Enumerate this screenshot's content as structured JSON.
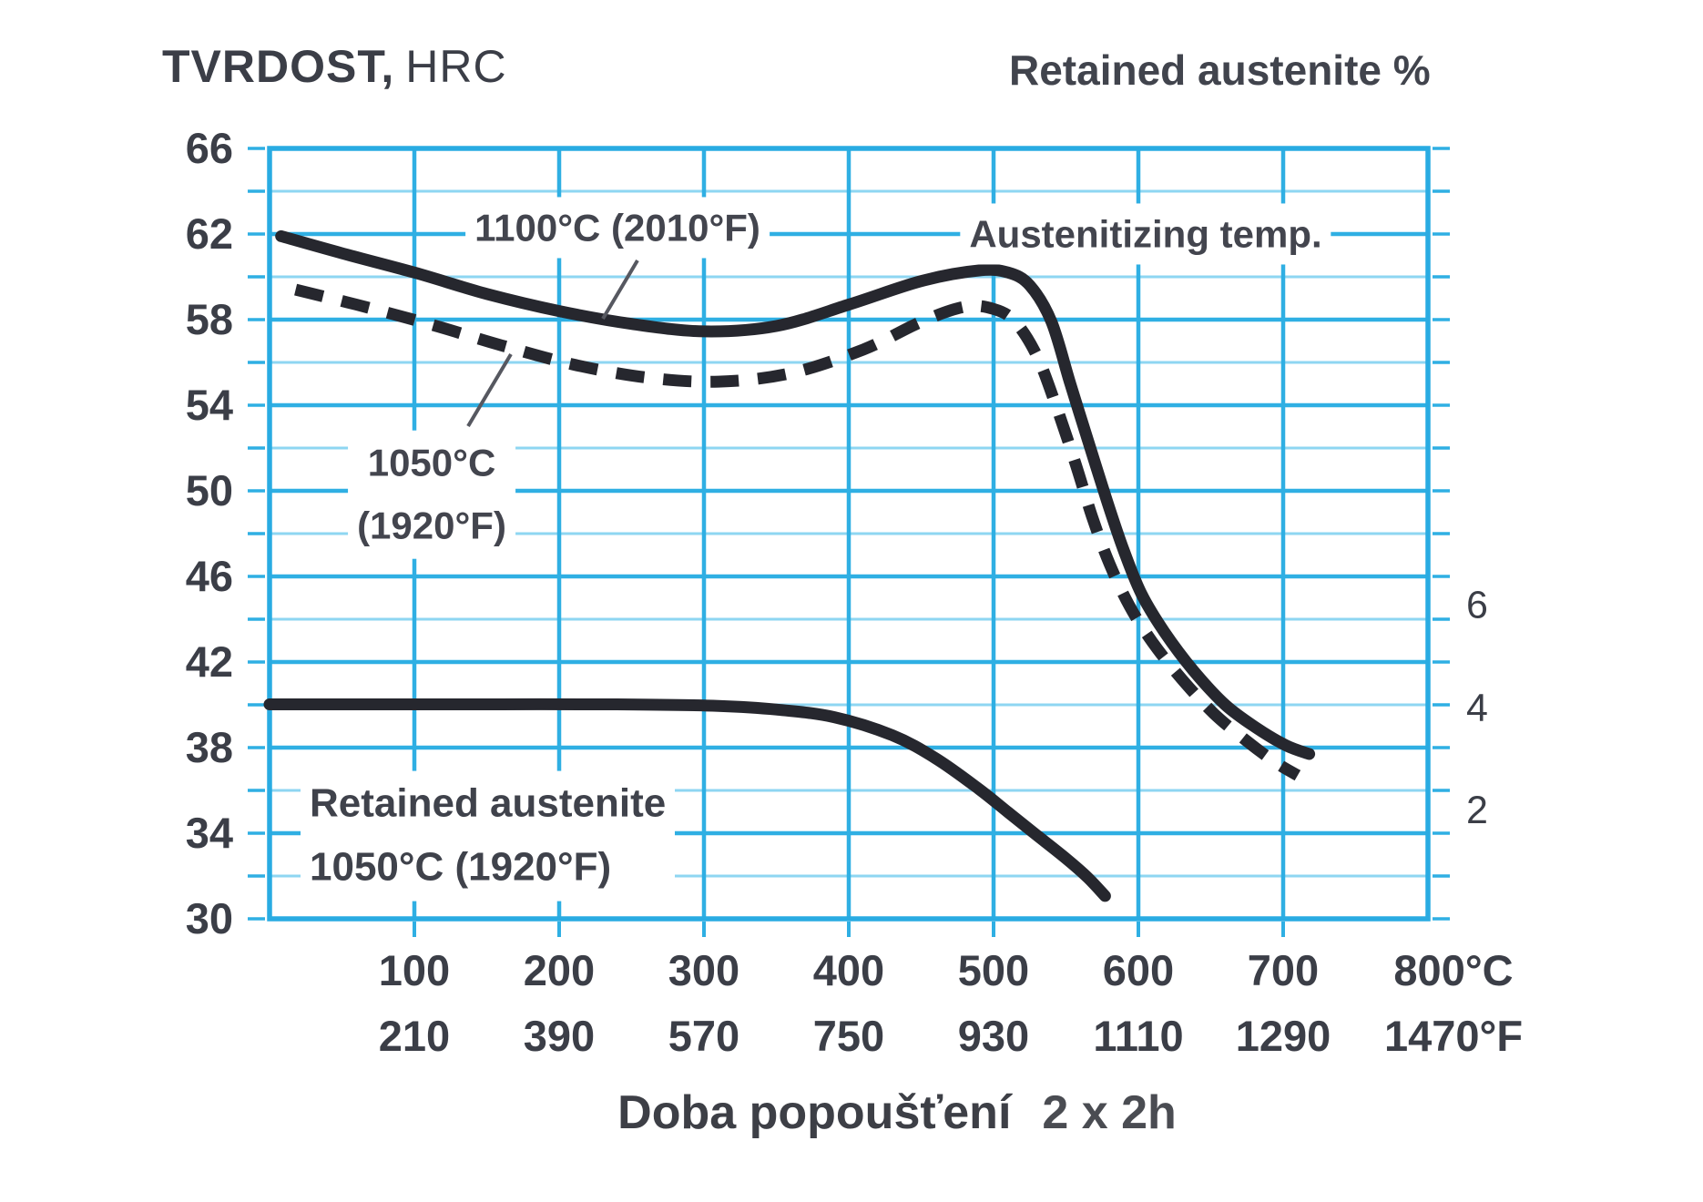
{
  "header": {
    "y_axis_title_bold": "TVRDOST,",
    "y_axis_title_unit": "HRC",
    "right_axis_title": "Retained austenite %"
  },
  "footer": {
    "x_axis_title": "Doba popoušťení",
    "x_axis_title_note": "2 x 2h"
  },
  "colors": {
    "grid_major": "#2FAFE3",
    "grid_minor": "#8ED6F2",
    "plot_border": "#29ABE2",
    "curve": "#26272E",
    "leader": "#565860",
    "text": "#3B3E47"
  },
  "chart_data": {
    "type": "line",
    "x_axis": {
      "unit_c": "°C",
      "unit_f": "°F",
      "range_c": [
        0,
        800
      ],
      "ticks_c": [
        100,
        200,
        300,
        400,
        500,
        600,
        700,
        800
      ],
      "ticks_f": [
        210,
        390,
        570,
        750,
        930,
        1110,
        1290,
        1470
      ]
    },
    "y_axis_left": {
      "label": "TVRDOST, HRC",
      "range": [
        30,
        66
      ],
      "ticks": [
        66,
        62,
        58,
        54,
        50,
        46,
        42,
        38,
        34,
        30
      ],
      "minor_step": 2
    },
    "y_axis_right": {
      "label": "Retained austenite %",
      "ticks": [
        6,
        4,
        2
      ],
      "scale": {
        "zero_at_hrc": 30.3,
        "hrc_per_percent": 2.4
      }
    },
    "series": [
      {
        "name": "1100°C (2010°F)",
        "role": "hardness",
        "line": "solid",
        "unit": "HRC",
        "points": [
          [
            8,
            61.9
          ],
          [
            50,
            61.1
          ],
          [
            100,
            60.2
          ],
          [
            150,
            59.2
          ],
          [
            200,
            58.4
          ],
          [
            250,
            57.8
          ],
          [
            300,
            57.45
          ],
          [
            350,
            57.7
          ],
          [
            400,
            58.7
          ],
          [
            450,
            59.8
          ],
          [
            490,
            60.3
          ],
          [
            510,
            60.2
          ],
          [
            525,
            59.6
          ],
          [
            540,
            57.9
          ],
          [
            553,
            55.0
          ],
          [
            565,
            52.4
          ],
          [
            578,
            49.6
          ],
          [
            590,
            47.2
          ],
          [
            602,
            45.2
          ],
          [
            618,
            43.4
          ],
          [
            638,
            41.6
          ],
          [
            660,
            40.0
          ],
          [
            682,
            38.9
          ],
          [
            702,
            38.1
          ],
          [
            718,
            37.7
          ]
        ]
      },
      {
        "name": "1050°C (1920°F)",
        "role": "hardness",
        "line": "dashed",
        "unit": "HRC",
        "points": [
          [
            18,
            59.4
          ],
          [
            60,
            58.7
          ],
          [
            110,
            57.8
          ],
          [
            160,
            56.8
          ],
          [
            210,
            55.9
          ],
          [
            260,
            55.3
          ],
          [
            310,
            55.1
          ],
          [
            360,
            55.5
          ],
          [
            410,
            56.6
          ],
          [
            450,
            57.9
          ],
          [
            480,
            58.6
          ],
          [
            500,
            58.5
          ],
          [
            515,
            57.9
          ],
          [
            530,
            56.3
          ],
          [
            543,
            54.0
          ],
          [
            556,
            51.4
          ],
          [
            568,
            48.8
          ],
          [
            580,
            46.6
          ],
          [
            594,
            44.6
          ],
          [
            610,
            42.9
          ],
          [
            630,
            41.2
          ],
          [
            652,
            39.6
          ],
          [
            675,
            38.3
          ],
          [
            695,
            37.3
          ],
          [
            710,
            36.7
          ]
        ]
      },
      {
        "name": "Retained austenite 1050°C (1920°F)",
        "role": "retained-austenite",
        "line": "solid",
        "unit": "%",
        "points": [
          [
            0,
            4.05
          ],
          [
            80,
            4.05
          ],
          [
            160,
            4.05
          ],
          [
            240,
            4.05
          ],
          [
            310,
            4.02
          ],
          [
            350,
            3.95
          ],
          [
            390,
            3.8
          ],
          [
            430,
            3.45
          ],
          [
            460,
            3.0
          ],
          [
            490,
            2.4
          ],
          [
            510,
            1.95
          ],
          [
            530,
            1.5
          ],
          [
            550,
            1.05
          ],
          [
            565,
            0.68
          ],
          [
            577,
            0.32
          ]
        ]
      }
    ],
    "annotations": [
      {
        "id": "series-label-1100",
        "text": "1100°C (2010°F)"
      },
      {
        "id": "austenitizing-temp-note",
        "text": "Austenitizing temp."
      },
      {
        "id": "series-label-1050",
        "lines": [
          "1050°C",
          "(1920°F)"
        ]
      },
      {
        "id": "retained-austenite-label",
        "lines": [
          "Retained austenite",
          "1050°C (1920°F)"
        ]
      }
    ]
  }
}
